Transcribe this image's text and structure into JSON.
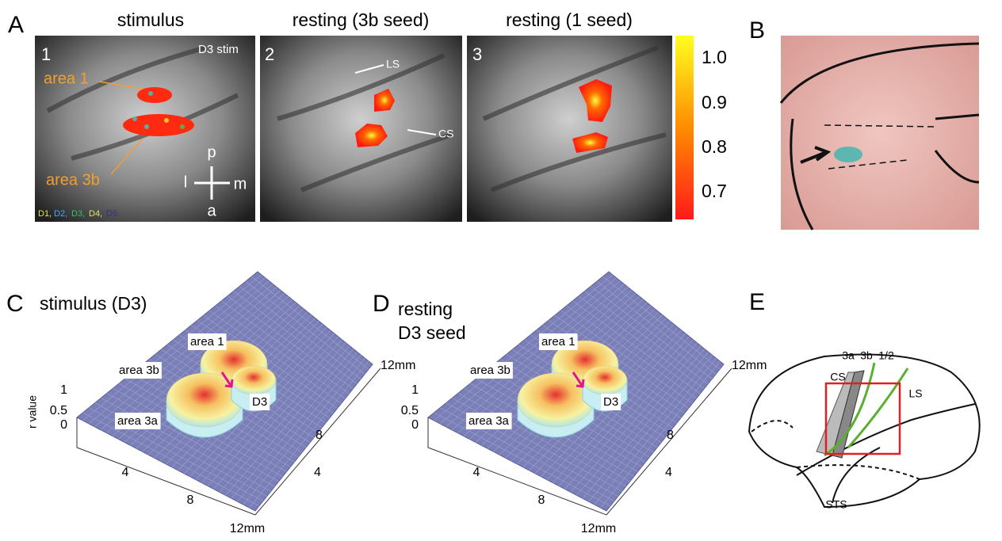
{
  "panels": {
    "A": {
      "label": "A",
      "titles": [
        "stimulus",
        "resting (3b seed)",
        "resting (1 seed)"
      ],
      "numbers": [
        "1",
        "2",
        "3"
      ],
      "stim_label": "D3 stim",
      "areas": [
        "area 1",
        "area 3b"
      ],
      "sulci": [
        "LS",
        "CS"
      ],
      "directions": [
        "p",
        "l",
        "m",
        "a"
      ],
      "digits": [
        "D1,",
        "D2,",
        "D3,",
        "D4,",
        "D5"
      ],
      "colorbar_ticks": [
        "1.0",
        "0.9",
        "0.8",
        "0.7"
      ]
    },
    "B": {
      "label": "B"
    },
    "C": {
      "label": "C",
      "title": "stimulus (D3)",
      "z_label": "r value",
      "z_ticks": [
        "1",
        "0.5",
        "0"
      ],
      "x_ticks": [
        "4",
        "8",
        "12mm"
      ],
      "y_ticks": [
        "4",
        "8",
        "12mm"
      ],
      "areas": [
        "area 1",
        "area 3b",
        "area 3a"
      ],
      "digit": "D3"
    },
    "D": {
      "label": "D",
      "title": [
        "resting",
        "D3 seed"
      ],
      "z_ticks": [
        "1",
        "0.5",
        "0"
      ],
      "x_ticks": [
        "4",
        "8",
        "12mm"
      ],
      "y_ticks": [
        "4",
        "8",
        "12mm"
      ],
      "areas": [
        "area 1",
        "area 3b",
        "area 3a"
      ],
      "digit": "D3"
    },
    "E": {
      "label": "E",
      "labels": [
        "3a",
        "3b",
        "1/2",
        "CS",
        "LS",
        "STS"
      ]
    }
  }
}
